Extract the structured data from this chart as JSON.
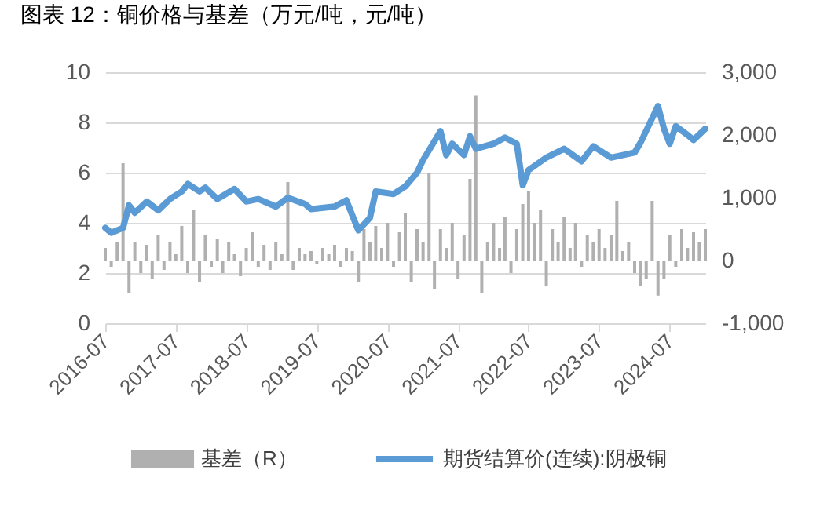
{
  "chart_data": {
    "type": "bar",
    "title": "图表 12：铜价格与基差（万元/吨，元/吨）",
    "x": [
      "2016-07",
      "2016-08",
      "2016-09",
      "2016-10",
      "2016-11",
      "2016-12",
      "2017-01",
      "2017-02",
      "2017-03",
      "2017-04",
      "2017-05",
      "2017-06",
      "2017-07",
      "2017-08",
      "2017-09",
      "2017-10",
      "2017-11",
      "2017-12",
      "2018-01",
      "2018-02",
      "2018-03",
      "2018-04",
      "2018-05",
      "2018-06",
      "2018-07",
      "2018-08",
      "2018-09",
      "2018-10",
      "2018-11",
      "2018-12",
      "2019-01",
      "2019-02",
      "2019-03",
      "2019-04",
      "2019-05",
      "2019-06",
      "2019-07",
      "2019-08",
      "2019-09",
      "2019-10",
      "2019-11",
      "2019-12",
      "2020-01",
      "2020-02",
      "2020-03",
      "2020-04",
      "2020-05",
      "2020-06",
      "2020-07",
      "2020-08",
      "2020-09",
      "2020-10",
      "2020-11",
      "2020-12",
      "2021-01",
      "2021-02",
      "2021-03",
      "2021-04",
      "2021-05",
      "2021-06",
      "2021-07",
      "2021-08",
      "2021-09",
      "2021-10",
      "2021-11",
      "2021-12",
      "2022-01",
      "2022-02",
      "2022-03",
      "2022-04",
      "2022-05",
      "2022-06",
      "2022-07",
      "2022-08",
      "2022-09",
      "2022-10",
      "2022-11",
      "2022-12",
      "2023-01",
      "2023-02",
      "2023-03",
      "2023-04",
      "2023-05",
      "2023-06",
      "2023-07",
      "2023-08",
      "2023-09",
      "2023-10",
      "2023-11",
      "2023-12",
      "2024-01",
      "2024-02",
      "2024-03",
      "2024-04",
      "2024-05",
      "2024-06",
      "2024-07",
      "2024-08",
      "2024-09",
      "2024-10",
      "2024-11",
      "2024-12",
      "2025-01"
    ],
    "series": [
      {
        "name": "基差（R）",
        "axis": "y2",
        "color": "#b0b0b0",
        "values": [
          200,
          -100,
          300,
          1550,
          -520,
          300,
          -200,
          250,
          -300,
          400,
          -150,
          300,
          100,
          550,
          -200,
          800,
          -350,
          400,
          -100,
          350,
          -200,
          300,
          100,
          -250,
          200,
          450,
          -100,
          250,
          -150,
          300,
          100,
          1250,
          -150,
          200,
          100,
          150,
          -50,
          200,
          100,
          250,
          -100,
          200,
          150,
          -350,
          500,
          300,
          550,
          200,
          600,
          -100,
          450,
          750,
          -350,
          500,
          300,
          1400,
          -450,
          500,
          200,
          600,
          -300,
          400,
          1300,
          2630,
          -520,
          300,
          600,
          200,
          700,
          -200,
          500,
          900,
          1100,
          600,
          800,
          -400,
          500,
          300,
          700,
          200,
          600,
          -100,
          400,
          300,
          500,
          200,
          400,
          950,
          150,
          300,
          -200,
          -400,
          -300,
          950,
          -560,
          -300,
          400,
          -100,
          500,
          200,
          450,
          300,
          500
        ]
      },
      {
        "name": "期货结算价(连续):阴极铜",
        "type": "line",
        "color": "#5b9bd5",
        "x": [
          "2016-07",
          "2016-08",
          "2016-10",
          "2016-11",
          "2016-12",
          "2017-02",
          "2017-04",
          "2017-06",
          "2017-08",
          "2017-09",
          "2017-11",
          "2017-12",
          "2018-02",
          "2018-05",
          "2018-07",
          "2018-09",
          "2018-12",
          "2019-02",
          "2019-05",
          "2019-06",
          "2019-10",
          "2019-12",
          "2020-01",
          "2020-02",
          "2020-04",
          "2020-05",
          "2020-08",
          "2020-10",
          "2020-12",
          "2021-01",
          "2021-04",
          "2021-05",
          "2021-06",
          "2021-08",
          "2021-09",
          "2021-10",
          "2022-01",
          "2022-03",
          "2022-05",
          "2022-06",
          "2022-07",
          "2022-10",
          "2023-01",
          "2023-04",
          "2023-06",
          "2023-09",
          "2024-01",
          "2024-02",
          "2024-05",
          "2024-06",
          "2024-07",
          "2024-08",
          "2024-10",
          "2024-11",
          "2025-01"
        ],
        "values": [
          3.8,
          3.6,
          3.8,
          4.7,
          4.4,
          4.85,
          4.5,
          4.95,
          5.25,
          5.55,
          5.25,
          5.4,
          4.95,
          5.35,
          4.85,
          4.95,
          4.65,
          5.0,
          4.75,
          4.55,
          4.65,
          4.9,
          4.3,
          3.7,
          4.2,
          5.25,
          5.15,
          5.45,
          6.0,
          6.5,
          7.65,
          6.7,
          7.15,
          6.7,
          7.45,
          6.95,
          7.15,
          7.4,
          7.15,
          5.5,
          6.1,
          6.6,
          6.95,
          6.45,
          7.05,
          6.6,
          6.8,
          7.2,
          8.65,
          7.75,
          7.15,
          7.85,
          7.5,
          7.3,
          7.75
        ]
      }
    ],
    "xlim": [
      "2016-07",
      "2025-01"
    ],
    "xticks": [
      "2016-07",
      "2017-07",
      "2018-07",
      "2019-07",
      "2020-07",
      "2021-07",
      "2022-07",
      "2023-07",
      "2024-07"
    ],
    "ylim": [
      0,
      10
    ],
    "yticks": [
      0,
      2,
      4,
      6,
      8,
      10
    ],
    "y2lim": [
      -1000,
      3000
    ],
    "y2ticks": [
      {
        "value": -1000,
        "label": "-1,000"
      },
      0,
      {
        "value": 1000,
        "label": "1,000"
      },
      {
        "value": 2000,
        "label": "2,000"
      },
      {
        "value": 3000,
        "label": "3,000"
      }
    ],
    "grid": "y",
    "legend": "bottom"
  }
}
